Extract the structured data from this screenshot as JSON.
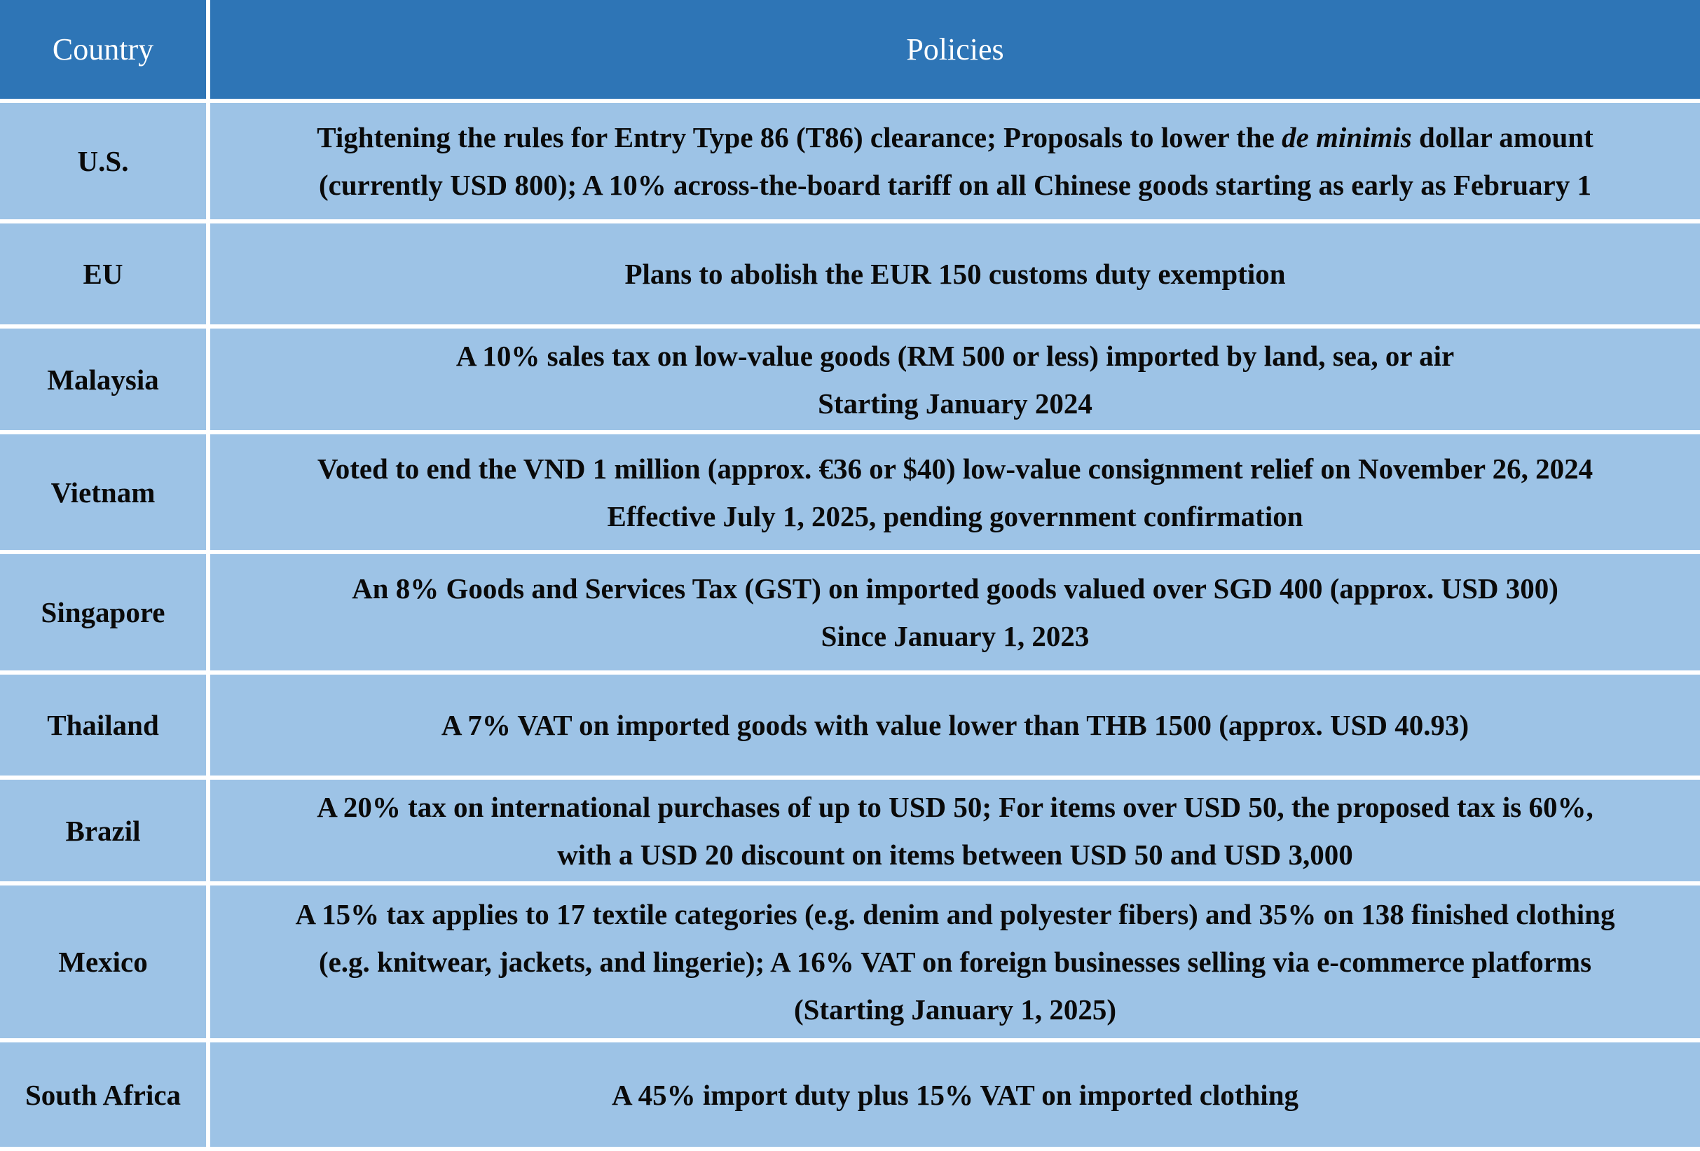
{
  "headers": {
    "country": "Country",
    "policies": "Policies"
  },
  "rows": [
    {
      "country": "U.S.",
      "lines": [
        "Tightening the rules for Entry Type 86 (T86) clearance; Proposals to lower the ",
        "(currently USD 800); A 10% across-the-board tariff on all Chinese goods starting as early as February 1"
      ],
      "italic": "de minimis",
      "after_italic": " dollar amount"
    },
    {
      "country": "EU",
      "lines": [
        "Plans to abolish the EUR 150 customs duty exemption"
      ]
    },
    {
      "country": "Malaysia",
      "lines": [
        "A 10% sales tax on low-value goods (RM 500 or less) imported by land, sea, or air",
        "Starting January 2024"
      ]
    },
    {
      "country": "Vietnam",
      "lines": [
        "Voted to end the VND 1 million (approx. €36 or $40) low-value consignment relief on November 26, 2024",
        "Effective July 1, 2025, pending government confirmation"
      ]
    },
    {
      "country": "Singapore",
      "lines": [
        "An 8% Goods and Services Tax (GST) on imported goods valued over SGD 400  (approx. USD 300)",
        "Since January 1, 2023"
      ]
    },
    {
      "country": "Thailand",
      "lines": [
        "A 7% VAT on imported goods with value lower than THB 1500 (approx. USD 40.93)"
      ]
    },
    {
      "country": "Brazil",
      "lines": [
        "A 20% tax on international purchases of up to USD 50; For items over USD 50, the proposed tax is 60%,",
        "with a USD 20 discount on items between USD 50 and USD 3,000"
      ]
    },
    {
      "country": "Mexico",
      "lines": [
        "A 15% tax applies to 17 textile categories (e.g. denim and polyester fibers) and 35% on 138 finished clothing",
        "(e.g. knitwear, jackets, and lingerie); A 16% VAT on foreign businesses selling via e-commerce platforms",
        "(Starting January 1, 2025)"
      ]
    },
    {
      "country": "South Africa",
      "lines": [
        "A 45% import duty plus 15% VAT on imported clothing"
      ]
    }
  ]
}
